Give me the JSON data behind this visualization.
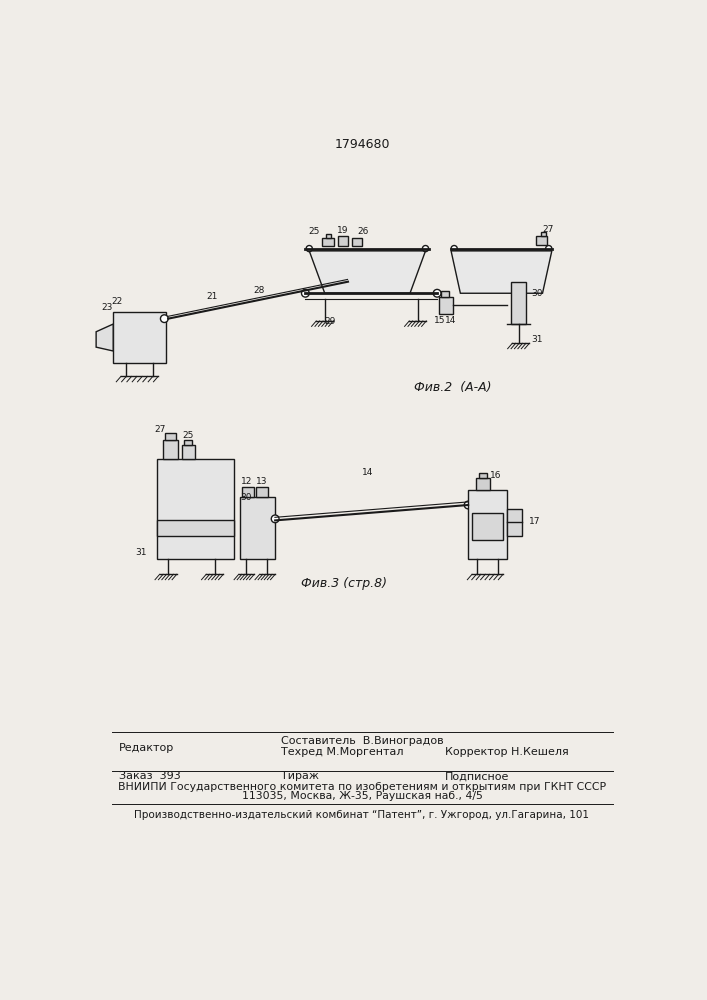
{
  "patent_number": "1794680",
  "bg_color": "#f0ede8",
  "fig2_caption": "Фив.2  (А-А)",
  "fig3_caption": "Фив.3 (стр.8)",
  "footer_editor": "Редактор",
  "footer_composer": "Составитель  В.Виноградов",
  "footer_techred": "Техред М.Моргентал",
  "footer_corrector": "Корректор Н.Кешеля",
  "footer_order": "Заказ  393",
  "footer_tirazh": "Тираж",
  "footer_podpisnoe": "Подписное",
  "footer_vnipi": "ВНИИПИ Государственного комитета по изобретениям и открытиям при ГКНТ СССР",
  "footer_address": "113035, Москва, Ж-35, Раушская наб., 4/5",
  "footer_publisher": "Производственно-издательский комбинат “Патент”, г. Ужгород, ул.Гагарина, 101"
}
